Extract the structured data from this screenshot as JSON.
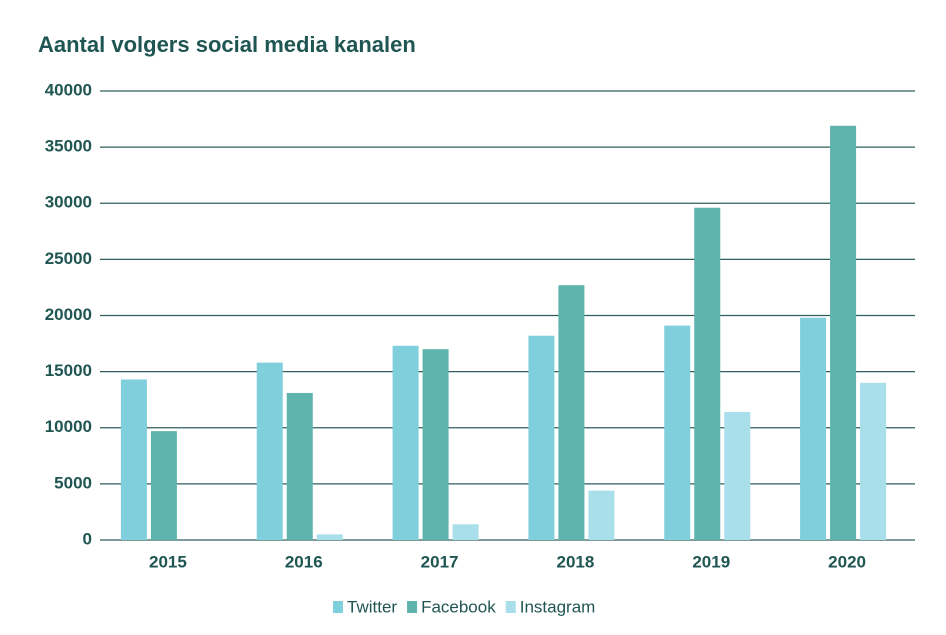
{
  "chart_data": {
    "type": "bar",
    "title": "Aantal volgers social media kanalen",
    "categories": [
      "2015",
      "2016",
      "2017",
      "2018",
      "2019",
      "2020"
    ],
    "series": [
      {
        "name": "Twitter",
        "color": "#7fcfdc",
        "values": [
          14300,
          15800,
          17300,
          18200,
          19100,
          19800
        ]
      },
      {
        "name": "Facebook",
        "color": "#5fb3ad",
        "values": [
          9700,
          13100,
          17000,
          22700,
          29600,
          36900
        ]
      },
      {
        "name": "Instagram",
        "color": "#a9dfea",
        "values": [
          0,
          500,
          1400,
          4400,
          11400,
          14000
        ]
      }
    ],
    "ylim": [
      0,
      40000
    ],
    "yticks": [
      0,
      5000,
      10000,
      15000,
      20000,
      25000,
      30000,
      35000,
      40000
    ],
    "grid": true,
    "legend": "bottom"
  }
}
